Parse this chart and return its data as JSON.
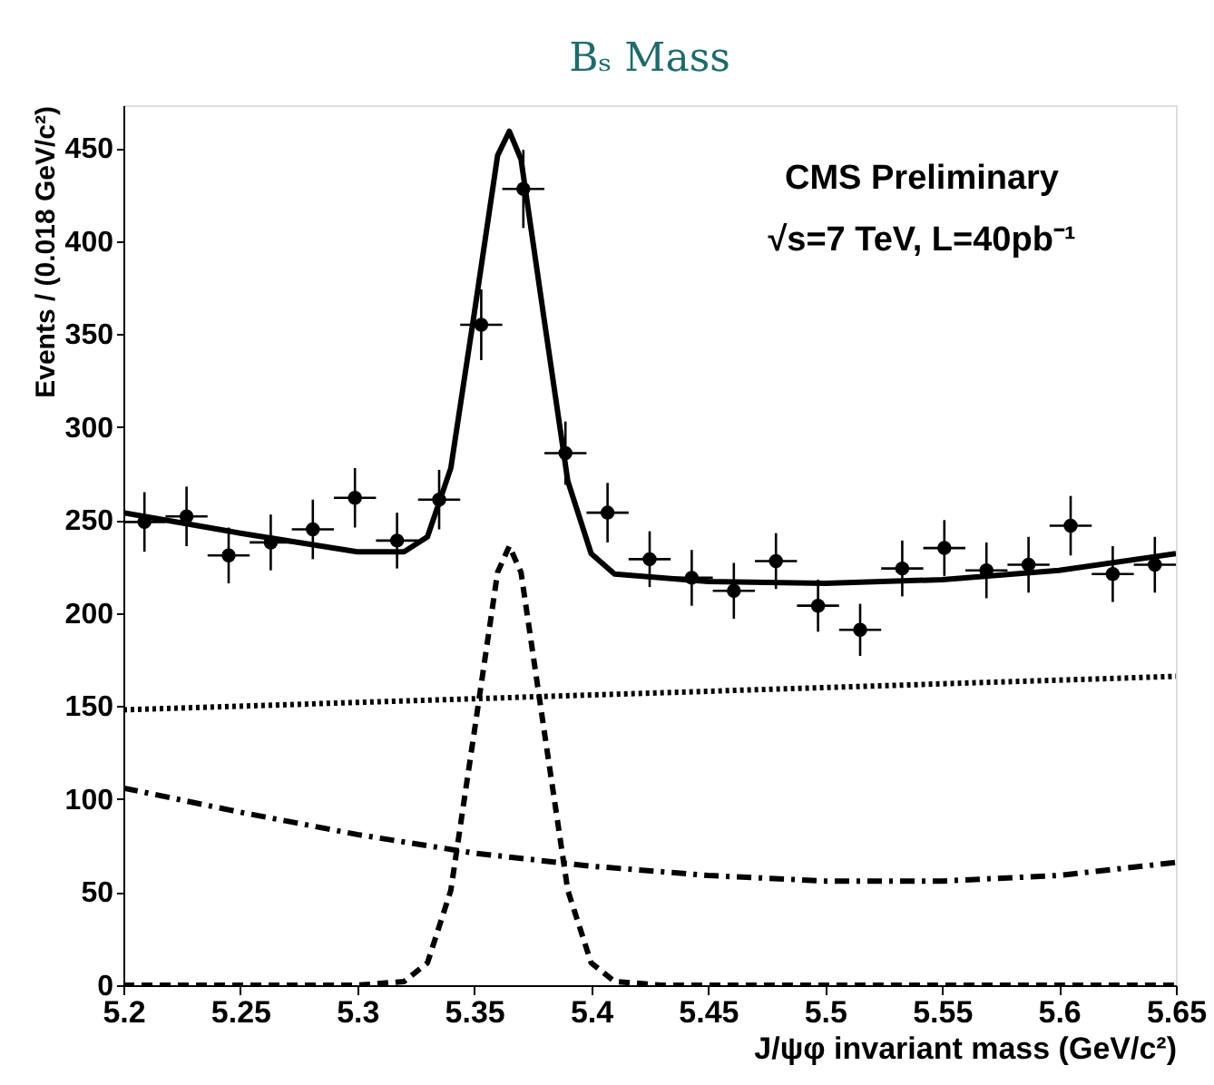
{
  "chart_data": {
    "type": "scatter",
    "title": "Bₛ Mass",
    "xlabel": "J/ψφ invariant mass (GeV/c²)",
    "ylabel": "Events / (0.018 GeV/c²)",
    "xlim": [
      5.2,
      5.65
    ],
    "xticks": [
      5.2,
      5.25,
      5.3,
      5.35,
      5.4,
      5.45,
      5.5,
      5.55,
      5.6,
      5.65
    ],
    "ylim": [
      0,
      473
    ],
    "yticks": [
      0,
      50,
      100,
      150,
      200,
      250,
      300,
      350,
      400,
      450
    ],
    "grid": false,
    "annotations": [
      "CMS Preliminary",
      "√s=7 TeV, L=40pb⁻¹"
    ],
    "series": [
      {
        "marker": "circle",
        "color": "#000000",
        "x": [
          5.209,
          5.227,
          5.245,
          5.263,
          5.281,
          5.299,
          5.317,
          5.335,
          5.353,
          5.371,
          5.389,
          5.407,
          5.425,
          5.443,
          5.461,
          5.479,
          5.497,
          5.515,
          5.533,
          5.551,
          5.569,
          5.587,
          5.605,
          5.623,
          5.641
        ],
        "values": [
          249,
          252,
          231,
          238,
          245,
          262,
          239,
          261,
          355,
          428,
          286,
          254,
          229,
          219,
          212,
          228,
          204,
          191,
          224,
          235,
          223,
          226,
          247,
          221,
          226
        ],
        "errors": [
          16,
          16,
          15,
          15,
          16,
          16,
          15,
          16,
          19,
          21,
          17,
          16,
          15,
          15,
          15,
          15,
          14,
          14,
          15,
          15,
          15,
          15,
          16,
          15,
          15
        ],
        "xerrors": [
          0.009,
          0.009,
          0.009,
          0.009,
          0.009,
          0.009,
          0.009,
          0.009,
          0.009,
          0.009,
          0.009,
          0.009,
          0.009,
          0.009,
          0.009,
          0.009,
          0.009,
          0.009,
          0.009,
          0.009,
          0.009,
          0.009,
          0.009,
          0.009,
          0.009
        ]
      },
      {
        "type": "line",
        "color": "#000000",
        "line_style": "solid",
        "x": [
          5.2,
          5.25,
          5.3,
          5.32,
          5.33,
          5.34,
          5.35,
          5.36,
          5.365,
          5.37,
          5.38,
          5.39,
          5.4,
          5.41,
          5.45,
          5.5,
          5.55,
          5.6,
          5.65
        ],
        "values": [
          254,
          243,
          233,
          233,
          241,
          278,
          361,
          446,
          459,
          444,
          357,
          271,
          232,
          221,
          217,
          216,
          218,
          223,
          232
        ]
      },
      {
        "type": "line",
        "color": "#000000",
        "line_style": "dashed",
        "x": [
          5.2,
          5.3,
          5.32,
          5.33,
          5.34,
          5.35,
          5.36,
          5.365,
          5.37,
          5.38,
          5.39,
          5.4,
          5.41,
          5.43,
          5.65
        ],
        "values": [
          0,
          0,
          2,
          12,
          51,
          136,
          222,
          236,
          222,
          136,
          51,
          12,
          2,
          0,
          0
        ]
      },
      {
        "type": "line",
        "color": "#000000",
        "line_style": "dotted",
        "x": [
          5.2,
          5.425,
          5.65
        ],
        "values": [
          148,
          157,
          166
        ]
      },
      {
        "type": "line",
        "color": "#000000",
        "line_style": "dashdot",
        "x": [
          5.2,
          5.25,
          5.3,
          5.35,
          5.4,
          5.45,
          5.5,
          5.55,
          5.6,
          5.65
        ],
        "values": [
          106,
          93,
          81,
          71,
          64,
          59,
          56,
          56,
          59,
          66
        ]
      }
    ]
  }
}
